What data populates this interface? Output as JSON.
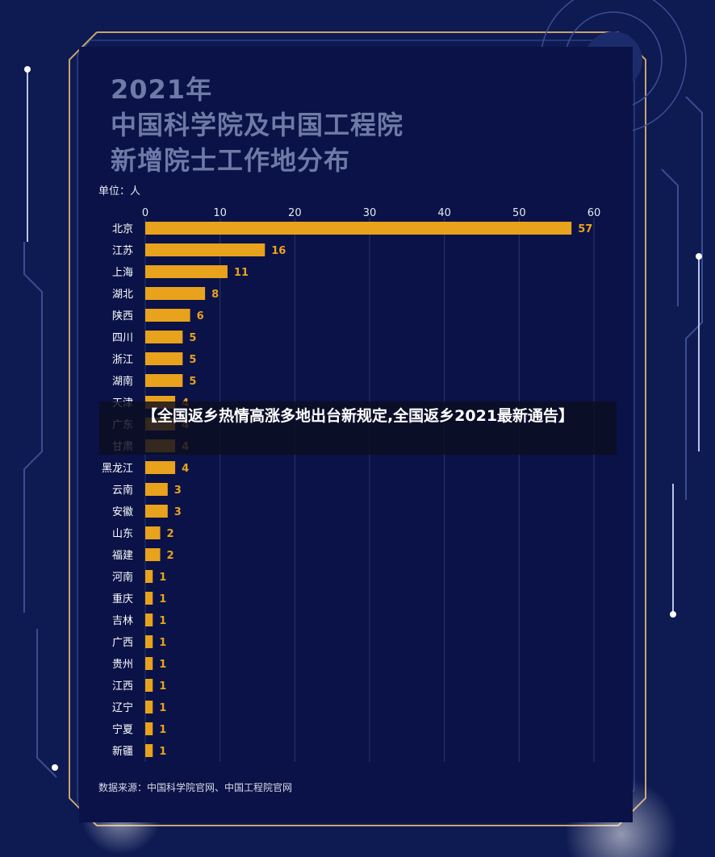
{
  "title_lines": [
    "2021年",
    "中国科学院及中国工程院",
    "新增院士工作地分布"
  ],
  "unit_label": "单位：人",
  "source_label": "数据来源：中国科学院官网、中国工程院官网",
  "overlay_title": "【全国返乡热情高涨多地出台新规定,全国返乡2021最新通告】",
  "colors": {
    "background": "#0e1a52",
    "panel": "#0a1247",
    "bar": "#e8a21c",
    "accent": "#c9a36b"
  },
  "chart_data": {
    "type": "bar",
    "orientation": "horizontal",
    "categories": [
      "北京",
      "江苏",
      "上海",
      "湖北",
      "陕西",
      "四川",
      "浙江",
      "湖南",
      "天津",
      "广东",
      "甘肃",
      "黑龙江",
      "云南",
      "安徽",
      "山东",
      "福建",
      "河南",
      "重庆",
      "吉林",
      "广西",
      "贵州",
      "江西",
      "辽宁",
      "宁夏",
      "新疆"
    ],
    "values": [
      57,
      16,
      11,
      8,
      6,
      5,
      5,
      5,
      4,
      4,
      4,
      4,
      3,
      3,
      2,
      2,
      1,
      1,
      1,
      1,
      1,
      1,
      1,
      1,
      1
    ],
    "xlim": [
      0,
      60
    ],
    "x_ticks": [
      0,
      10,
      20,
      30,
      40,
      50,
      60
    ],
    "grid": true,
    "axis_position": "top"
  }
}
